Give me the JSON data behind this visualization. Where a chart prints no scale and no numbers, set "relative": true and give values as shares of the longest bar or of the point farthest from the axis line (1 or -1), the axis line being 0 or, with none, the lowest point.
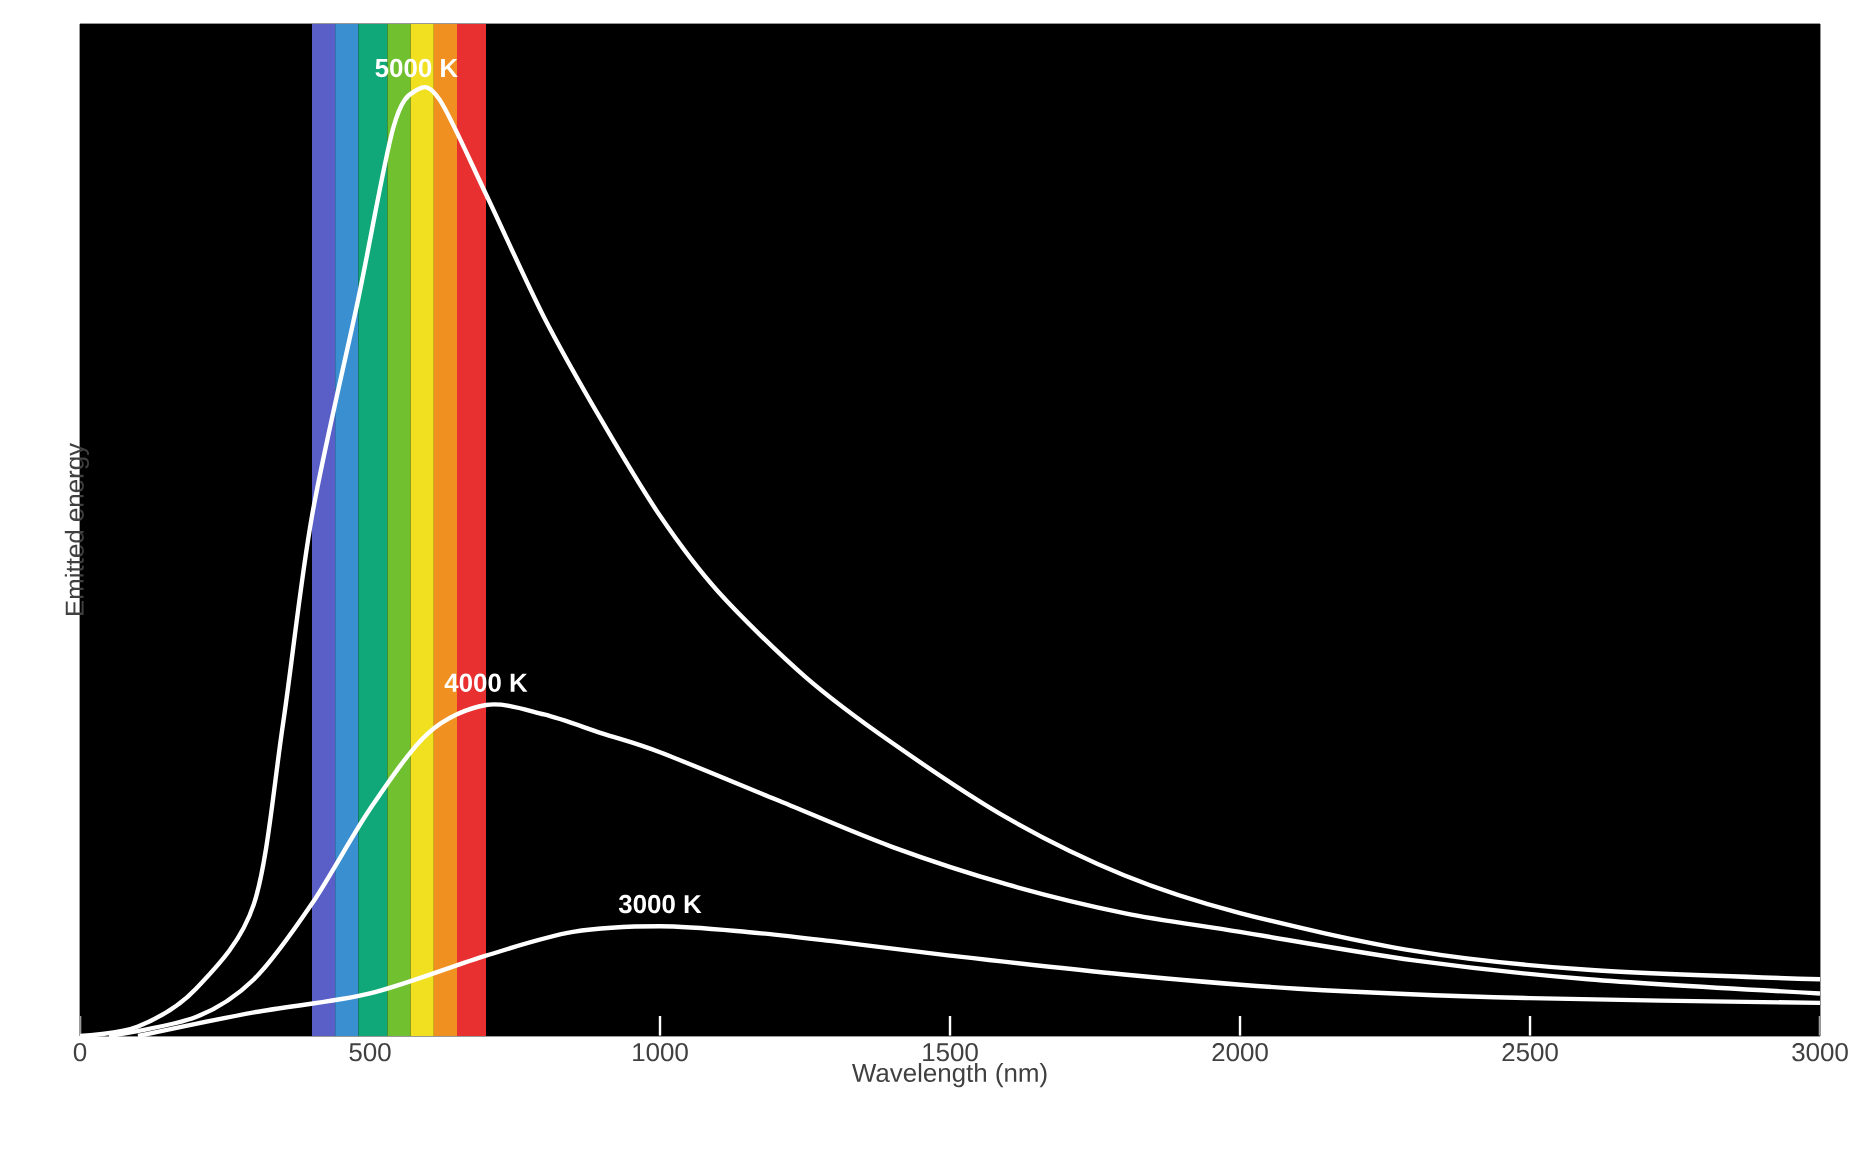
{
  "chart_data": {
    "type": "line",
    "relative": true,
    "xlabel": "Wavelength (nm)",
    "ylabel": "Emitted energy",
    "xlim": [
      0,
      3000
    ],
    "xticks": [
      0,
      500,
      1000,
      1500,
      2000,
      2500,
      3000
    ],
    "legend": false,
    "grid": false,
    "marker": "none",
    "line_style": "solid",
    "bands": [
      {
        "axis": "x",
        "from": 400,
        "to": 440,
        "color": "#5a5fc8"
      },
      {
        "axis": "x",
        "from": 440,
        "to": 480,
        "color": "#3a8fd0"
      },
      {
        "axis": "x",
        "from": 480,
        "to": 530,
        "color": "#10a878"
      },
      {
        "axis": "x",
        "from": 530,
        "to": 570,
        "color": "#70c030"
      },
      {
        "axis": "x",
        "from": 570,
        "to": 610,
        "color": "#f0e020"
      },
      {
        "axis": "x",
        "from": 610,
        "to": 650,
        "color": "#f09020"
      },
      {
        "axis": "x",
        "from": 650,
        "to": 700,
        "color": "#e83030"
      }
    ],
    "series": [
      {
        "name": "5000 K",
        "color": "#ffffff",
        "x": [
          0,
          100,
          200,
          300,
          350,
          400,
          480,
          540,
          580,
          620,
          700,
          800,
          900,
          1000,
          1100,
          1250,
          1400,
          1600,
          1800,
          2000,
          2300,
          2600,
          3000
        ],
        "values": [
          0,
          0.01,
          0.05,
          0.14,
          0.33,
          0.55,
          0.78,
          0.96,
          1.0,
          0.99,
          0.89,
          0.76,
          0.65,
          0.55,
          0.47,
          0.38,
          0.31,
          0.23,
          0.17,
          0.13,
          0.09,
          0.07,
          0.06
        ]
      },
      {
        "name": "4000 K",
        "color": "#ffffff",
        "x": [
          50,
          200,
          300,
          400,
          500,
          600,
          700,
          800,
          900,
          1000,
          1200,
          1400,
          1600,
          1800,
          2000,
          2300,
          2600,
          3000
        ],
        "values": [
          0,
          0.02,
          0.06,
          0.14,
          0.24,
          0.32,
          0.35,
          0.34,
          0.32,
          0.3,
          0.25,
          0.2,
          0.16,
          0.13,
          0.11,
          0.08,
          0.06,
          0.045
        ]
      },
      {
        "name": "3000 K",
        "color": "#ffffff",
        "x": [
          100,
          300,
          500,
          700,
          850,
          1000,
          1150,
          1300,
          1500,
          1800,
          2100,
          2500,
          3000
        ],
        "values": [
          0,
          0.025,
          0.045,
          0.085,
          0.11,
          0.116,
          0.11,
          0.1,
          0.085,
          0.065,
          0.05,
          0.04,
          0.035
        ]
      }
    ]
  }
}
